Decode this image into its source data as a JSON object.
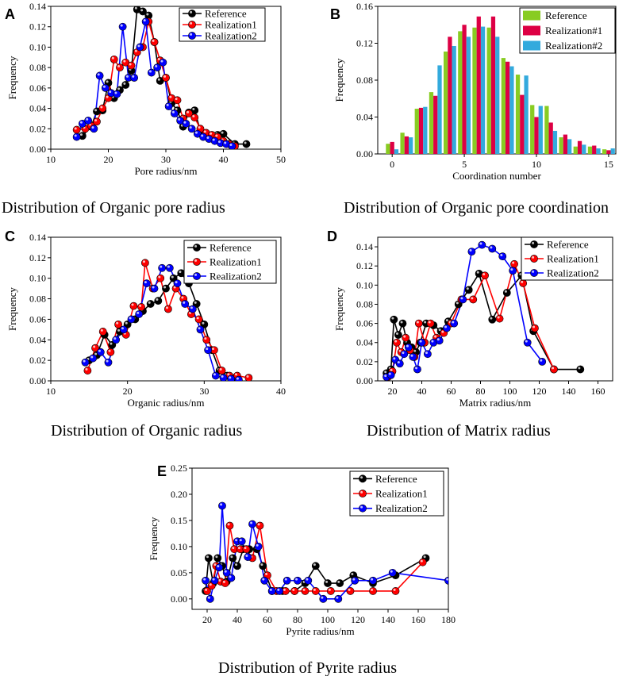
{
  "figure": {
    "captions": [
      "Distribution of Organic pore radius",
      "Distribution of Organic pore coordination",
      "Distribution of Organic radius",
      "Distribution of Matrix radius",
      "Distribution of Pyrite radius"
    ]
  },
  "chart_data": [
    {
      "panel": "A",
      "type": "line",
      "xlabel": "Pore radius/nm",
      "ylabel": "Frequency",
      "xlim": [
        10,
        50
      ],
      "ylim": [
        0,
        0.14
      ],
      "xticks": [
        10,
        20,
        30,
        40,
        50
      ],
      "yticks": [
        0,
        0.02,
        0.04,
        0.06,
        0.08,
        0.1,
        0.12,
        0.14
      ],
      "ytick_labels": [
        "0.00",
        "0.02",
        "0.04",
        "0.06",
        "0.08",
        "0.10",
        "0.12",
        "0.14"
      ],
      "legend": "top-right",
      "series": [
        {
          "name": "Reference",
          "color": "#000000",
          "x": [
            15.5,
            17,
            18,
            19,
            20,
            21,
            22,
            23,
            24,
            25,
            26,
            27,
            28,
            29,
            30,
            31,
            32,
            33,
            34,
            35,
            36,
            37,
            38,
            39,
            40,
            42,
            44
          ],
          "y": [
            0.013,
            0.022,
            0.037,
            0.038,
            0.065,
            0.05,
            0.058,
            0.063,
            0.077,
            0.137,
            0.135,
            0.131,
            0.105,
            0.067,
            0.07,
            0.045,
            0.038,
            0.022,
            0.036,
            0.038,
            0.018,
            0.015,
            0.012,
            0.014,
            0.015,
            0.005,
            0.005
          ]
        },
        {
          "name": "Realization1",
          "color": "#ff0000",
          "x": [
            14.5,
            16,
            17,
            18,
            19,
            20,
            21,
            22,
            23,
            24,
            25,
            26,
            27,
            28,
            29,
            30,
            31,
            32,
            33,
            34,
            35,
            36,
            37,
            38,
            39,
            40,
            41,
            42
          ],
          "y": [
            0.019,
            0.02,
            0.023,
            0.027,
            0.04,
            0.05,
            0.088,
            0.08,
            0.085,
            0.082,
            0.095,
            0.1,
            0.125,
            0.105,
            0.087,
            0.07,
            0.05,
            0.048,
            0.03,
            0.035,
            0.031,
            0.02,
            0.016,
            0.014,
            0.012,
            0.008,
            0.005,
            0.003
          ]
        },
        {
          "name": "Realization2",
          "color": "#0000ff",
          "x": [
            14.5,
            15.5,
            16.5,
            17.5,
            18.5,
            19.5,
            20.5,
            21.5,
            22.5,
            23.5,
            24.5,
            25.5,
            26.5,
            27.5,
            28.5,
            29.5,
            30.5,
            31.5,
            32.5,
            33.5,
            34.5,
            35.5,
            36.5,
            37.5,
            38.5,
            39.5,
            40.5,
            41.5
          ],
          "y": [
            0.012,
            0.025,
            0.028,
            0.02,
            0.072,
            0.06,
            0.055,
            0.054,
            0.12,
            0.07,
            0.07,
            0.1,
            0.125,
            0.075,
            0.08,
            0.085,
            0.042,
            0.035,
            0.028,
            0.025,
            0.02,
            0.015,
            0.012,
            0.01,
            0.008,
            0.006,
            0.005,
            0.003
          ]
        }
      ]
    },
    {
      "panel": "B",
      "type": "bar",
      "xlabel": "Coordination number",
      "ylabel": "Frequency",
      "xlim": [
        -1,
        15.5
      ],
      "ylim": [
        0,
        0.16
      ],
      "xticks": [
        0,
        5,
        10,
        15
      ],
      "yticks": [
        0,
        0.04,
        0.08,
        0.12,
        0.16
      ],
      "ytick_labels": [
        "0.00",
        "0.04",
        "0.08",
        "0.12",
        "0.16"
      ],
      "legend": "top-right",
      "categories": [
        0,
        1,
        2,
        3,
        4,
        5,
        6,
        7,
        8,
        9,
        10,
        11,
        12,
        13,
        14,
        15
      ],
      "series": [
        {
          "name": "Reference",
          "color": "#88cc22",
          "values": [
            0.011,
            0.023,
            0.049,
            0.067,
            0.111,
            0.133,
            0.137,
            0.137,
            0.104,
            0.086,
            0.053,
            0.052,
            0.018,
            0.008,
            0.008,
            0.005
          ]
        },
        {
          "name": "Realization#1",
          "color": "#dd0044",
          "values": [
            0.013,
            0.019,
            0.05,
            0.063,
            0.127,
            0.14,
            0.149,
            0.149,
            0.1,
            0.064,
            0.04,
            0.034,
            0.021,
            0.014,
            0.009,
            0.004
          ]
        },
        {
          "name": "Realization#2",
          "color": "#33aadd",
          "values": [
            0.005,
            0.018,
            0.051,
            0.096,
            0.117,
            0.127,
            0.138,
            0.127,
            0.095,
            0.085,
            0.052,
            0.025,
            0.016,
            0.01,
            0.006,
            0.006
          ]
        }
      ]
    },
    {
      "panel": "C",
      "type": "line",
      "xlabel": "Organic radius/nm",
      "ylabel": "Frequency",
      "xlim": [
        10,
        40
      ],
      "ylim": [
        0,
        0.14
      ],
      "xticks": [
        10,
        20,
        30,
        40
      ],
      "yticks": [
        0,
        0.02,
        0.04,
        0.06,
        0.08,
        0.1,
        0.12,
        0.14
      ],
      "ytick_labels": [
        "0.00",
        "0.02",
        "0.04",
        "0.06",
        "0.08",
        "0.10",
        "0.12",
        "0.14"
      ],
      "legend": "top-right",
      "series": [
        {
          "name": "Reference",
          "color": "#000000",
          "x": [
            15,
            16,
            17,
            18,
            19,
            20,
            21,
            22,
            23,
            24,
            25,
            26,
            27,
            28,
            29,
            30,
            31,
            32,
            33,
            34
          ],
          "y": [
            0.02,
            0.025,
            0.045,
            0.035,
            0.048,
            0.055,
            0.06,
            0.068,
            0.075,
            0.078,
            0.09,
            0.1,
            0.105,
            0.095,
            0.075,
            0.055,
            0.03,
            0.01,
            0.005,
            0.003
          ]
        },
        {
          "name": "Realization1",
          "color": "#ff0000",
          "x": [
            14.8,
            15.8,
            16.8,
            17.8,
            18.8,
            19.8,
            20.8,
            21.8,
            22.3,
            23.3,
            24.3,
            25.3,
            26.3,
            27.3,
            28.3,
            29.3,
            30.3,
            31.3,
            32.3,
            33.3,
            34.3,
            35.8
          ],
          "y": [
            0.01,
            0.032,
            0.048,
            0.028,
            0.055,
            0.045,
            0.073,
            0.072,
            0.115,
            0.09,
            0.1,
            0.07,
            0.09,
            0.08,
            0.065,
            0.06,
            0.04,
            0.03,
            0.01,
            0.005,
            0.005,
            0.003
          ]
        },
        {
          "name": "Realization2",
          "color": "#0000ff",
          "x": [
            14.5,
            15.5,
            16.5,
            17.5,
            18.5,
            19.5,
            20.5,
            21.5,
            22.5,
            23.5,
            24.5,
            25.5,
            26.5,
            27.5,
            28.5,
            29.5,
            30.5,
            31.5,
            32.5,
            33.5,
            34.5
          ],
          "y": [
            0.018,
            0.022,
            0.028,
            0.018,
            0.04,
            0.05,
            0.06,
            0.065,
            0.095,
            0.09,
            0.11,
            0.11,
            0.095,
            0.075,
            0.07,
            0.05,
            0.03,
            0.005,
            0.003,
            0.002,
            0.001
          ]
        }
      ]
    },
    {
      "panel": "D",
      "type": "line",
      "xlabel": "Matrix radius/nm",
      "ylabel": "Frequency",
      "xlim": [
        10,
        170
      ],
      "ylim": [
        0,
        0.15
      ],
      "xticks": [
        20,
        40,
        60,
        80,
        100,
        120,
        140,
        160
      ],
      "yticks": [
        0,
        0.02,
        0.04,
        0.06,
        0.08,
        0.1,
        0.12,
        0.14
      ],
      "ytick_labels": [
        "0.00",
        "0.02",
        "0.04",
        "0.06",
        "0.08",
        "0.10",
        "0.12",
        "0.14"
      ],
      "legend": "top-right",
      "series": [
        {
          "name": "Reference",
          "color": "#000000",
          "x": [
            16,
            19,
            21,
            24,
            27,
            30,
            33,
            36,
            39,
            43,
            48,
            53,
            58,
            65,
            72,
            79,
            88,
            98,
            108,
            116,
            130,
            148
          ],
          "y": [
            0.008,
            0.012,
            0.064,
            0.048,
            0.06,
            0.04,
            0.035,
            0.03,
            0.04,
            0.06,
            0.058,
            0.052,
            0.062,
            0.08,
            0.095,
            0.112,
            0.064,
            0.092,
            0.11,
            0.052,
            0.012,
            0.012
          ]
        },
        {
          "name": "Realization1",
          "color": "#ff0000",
          "x": [
            17,
            20,
            23,
            26,
            29,
            32,
            35,
            38,
            42,
            46,
            50,
            55,
            60,
            67,
            75,
            83,
            93,
            103,
            109,
            117,
            130
          ],
          "y": [
            0.004,
            0.01,
            0.04,
            0.03,
            0.045,
            0.032,
            0.025,
            0.06,
            0.04,
            0.06,
            0.045,
            0.05,
            0.06,
            0.085,
            0.085,
            0.11,
            0.065,
            0.122,
            0.102,
            0.055,
            0.012
          ]
        },
        {
          "name": "Realization2",
          "color": "#0000ff",
          "x": [
            16,
            19,
            22,
            25,
            28,
            31,
            34,
            37,
            40,
            44,
            48,
            52,
            57,
            62,
            68,
            74,
            81,
            88,
            95,
            102,
            112,
            122
          ],
          "y": [
            0.004,
            0.006,
            0.022,
            0.018,
            0.028,
            0.035,
            0.025,
            0.012,
            0.04,
            0.028,
            0.04,
            0.042,
            0.055,
            0.06,
            0.085,
            0.135,
            0.142,
            0.138,
            0.13,
            0.115,
            0.04,
            0.02
          ]
        }
      ]
    },
    {
      "panel": "E",
      "type": "line",
      "xlabel": "Pyrite radius/nm",
      "ylabel": "Frequency",
      "xlim": [
        10,
        180
      ],
      "ylim": [
        -0.02,
        0.25
      ],
      "xticks": [
        20,
        40,
        60,
        80,
        100,
        120,
        140,
        160,
        180
      ],
      "yticks": [
        0,
        0.05,
        0.1,
        0.15,
        0.2,
        0.25
      ],
      "ytick_labels": [
        "0.00",
        "0.05",
        "0.10",
        "0.15",
        "0.20",
        "0.25"
      ],
      "legend": "top-right",
      "series": [
        {
          "name": "Reference",
          "color": "#000000",
          "x": [
            19,
            21,
            24,
            27,
            30,
            33,
            37,
            40,
            44,
            48,
            53,
            57,
            63,
            70,
            78,
            85,
            92,
            100,
            108,
            117,
            130,
            145,
            165
          ],
          "y": [
            0.015,
            0.078,
            0.03,
            0.078,
            0.063,
            0.033,
            0.078,
            0.063,
            0.095,
            0.095,
            0.095,
            0.063,
            0.015,
            0.015,
            0.015,
            0.03,
            0.063,
            0.03,
            0.03,
            0.045,
            0.03,
            0.045,
            0.078
          ]
        },
        {
          "name": "Realization1",
          "color": "#ff0000",
          "x": [
            20,
            23,
            26,
            29,
            32,
            35,
            38,
            42,
            46,
            50,
            55,
            60,
            66,
            72,
            78,
            85,
            92,
            102,
            115,
            130,
            145,
            163
          ],
          "y": [
            0.015,
            0.025,
            0.063,
            0.033,
            0.03,
            0.14,
            0.095,
            0.095,
            0.095,
            0.078,
            0.14,
            0.045,
            0.015,
            0.015,
            0.015,
            0.015,
            0.015,
            0.015,
            0.015,
            0.015,
            0.015,
            0.07
          ]
        },
        {
          "name": "Realization2",
          "color": "#0000ff",
          "x": [
            19,
            22,
            25,
            28,
            30,
            33,
            36,
            40,
            43,
            47,
            50,
            54,
            58,
            63,
            68,
            73,
            80,
            87,
            97,
            107,
            118,
            130,
            143,
            180
          ],
          "y": [
            0.035,
            0.0,
            0.035,
            0.06,
            0.178,
            0.05,
            0.04,
            0.11,
            0.11,
            0.08,
            0.143,
            0.1,
            0.035,
            0.015,
            0.015,
            0.035,
            0.035,
            0.035,
            0.0,
            0.0,
            0.035,
            0.035,
            0.05,
            0.035
          ]
        }
      ]
    }
  ]
}
